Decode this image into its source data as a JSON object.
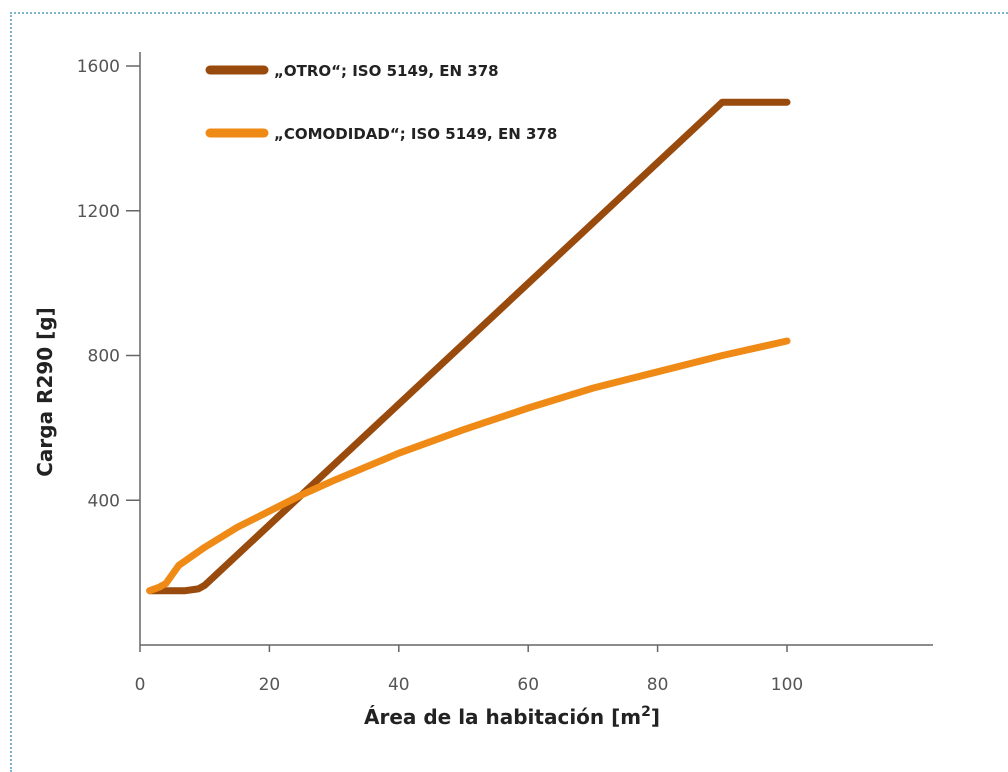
{
  "chart_data": {
    "type": "line",
    "xlabel": "Área de la habitación [m",
    "xlabel_sup": "2",
    "xlabel_end": "]",
    "ylabel": "Carga R290 [g]",
    "xlim": [
      0,
      120
    ],
    "ylim": [
      0,
      1600
    ],
    "xticks": [
      0,
      20,
      40,
      60,
      80,
      100
    ],
    "yticks": [
      400,
      800,
      1200,
      1600
    ],
    "legend_position": "top-left",
    "grid": false,
    "series": [
      {
        "name": "„OTRO“; ISO 5149, EN 378",
        "color": "#994a0d",
        "points": [
          [
            1.5,
            150
          ],
          [
            7,
            150
          ],
          [
            9,
            155
          ],
          [
            10,
            165
          ],
          [
            90,
            1500
          ],
          [
            100,
            1500
          ]
        ]
      },
      {
        "name": "„COMODIDAD“; ISO 5149, EN 378",
        "color": "#f08a16",
        "points": [
          [
            1.5,
            150
          ],
          [
            3,
            160
          ],
          [
            4,
            170
          ],
          [
            6,
            220
          ],
          [
            10,
            270
          ],
          [
            15,
            325
          ],
          [
            20,
            370
          ],
          [
            25,
            415
          ],
          [
            30,
            455
          ],
          [
            40,
            530
          ],
          [
            50,
            595
          ],
          [
            60,
            655
          ],
          [
            70,
            710
          ],
          [
            80,
            755
          ],
          [
            90,
            800
          ],
          [
            100,
            840
          ]
        ]
      }
    ]
  }
}
